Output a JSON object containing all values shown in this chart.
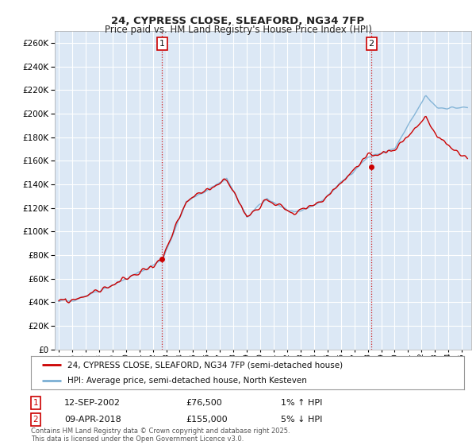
{
  "title_line1": "24, CYPRESS CLOSE, SLEAFORD, NG34 7FP",
  "title_line2": "Price paid vs. HM Land Registry's House Price Index (HPI)",
  "ylim": [
    0,
    270000
  ],
  "ytick_vals": [
    0,
    20000,
    40000,
    60000,
    80000,
    100000,
    120000,
    140000,
    160000,
    180000,
    200000,
    220000,
    240000,
    260000
  ],
  "xlim_start": 1994.7,
  "xlim_end": 2025.7,
  "hpi_color": "#7bafd4",
  "price_color": "#cc0000",
  "vline_color": "#cc0000",
  "marker1_x": 2002.7,
  "marker1_y": 76500,
  "marker2_x": 2018.27,
  "marker2_y": 155000,
  "legend_line1": "24, CYPRESS CLOSE, SLEAFORD, NG34 7FP (semi-detached house)",
  "legend_line2": "HPI: Average price, semi-detached house, North Kesteven",
  "annotation1_date": "12-SEP-2002",
  "annotation1_price": "£76,500",
  "annotation1_hpi": "1% ↑ HPI",
  "annotation2_date": "09-APR-2018",
  "annotation2_price": "£155,000",
  "annotation2_hpi": "5% ↓ HPI",
  "footer": "Contains HM Land Registry data © Crown copyright and database right 2025.\nThis data is licensed under the Open Government Licence v3.0.",
  "bg_color": "#ffffff",
  "plot_bg_color": "#dce8f5",
  "grid_color": "#ffffff"
}
